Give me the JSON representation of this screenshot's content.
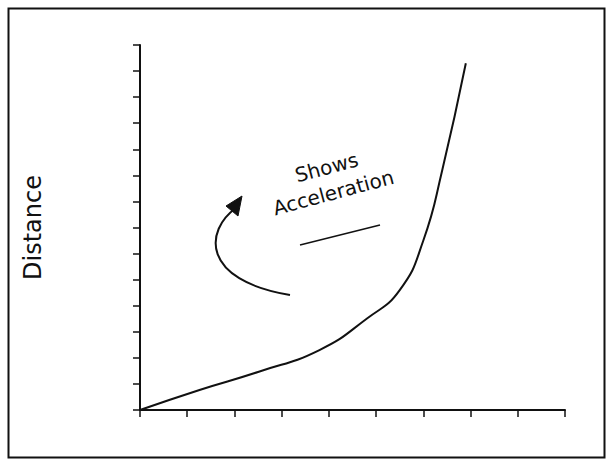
{
  "chart_data": {
    "type": "line",
    "y_label": "Distance",
    "x": [
      0,
      1.26,
      2.5,
      3.8,
      4.8,
      5.5,
      6.0,
      6.4,
      6.9
    ],
    "values": [
      0,
      0.77,
      1.46,
      2.3,
      3.5,
      4.6,
      6.5,
      9.2,
      13.3
    ],
    "color": "#111111",
    "xlim": [
      0,
      9
    ],
    "xticks": [
      0,
      1,
      2,
      3,
      4,
      5,
      6,
      7,
      8,
      9
    ],
    "ylim": [
      0,
      14
    ],
    "yticks": [
      0,
      1,
      2,
      3,
      4,
      5,
      6,
      7,
      8,
      9,
      10,
      11,
      12,
      13,
      14
    ],
    "tick_labels": false,
    "grid": false,
    "annotations": [
      {
        "text": "Shows Acceleration"
      }
    ]
  }
}
